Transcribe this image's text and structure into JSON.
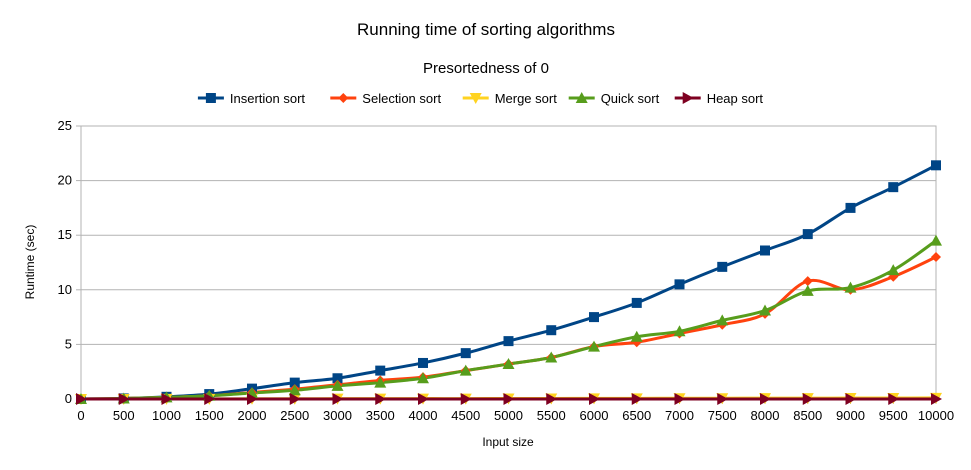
{
  "chart_data": {
    "type": "line",
    "title": "Running time of sorting algorithms",
    "subtitle": "Presortedness of 0",
    "xlabel": "Input size",
    "ylabel": "Runtime (sec)",
    "ylim": [
      0,
      25
    ],
    "yticks": [
      0,
      5,
      10,
      15,
      20,
      25
    ],
    "grid": true,
    "legend_position": "top",
    "x": [
      0,
      500,
      1000,
      1500,
      2000,
      2500,
      3000,
      3500,
      4000,
      4500,
      5000,
      5500,
      6000,
      6500,
      7000,
      7500,
      8000,
      8500,
      9000,
      9500,
      10000
    ],
    "series": [
      {
        "name": "Insertion sort",
        "color": "#004586",
        "marker": "square",
        "values": [
          0,
          0.05,
          0.2,
          0.45,
          0.95,
          1.5,
          1.9,
          2.6,
          3.3,
          4.2,
          5.3,
          6.3,
          7.5,
          8.8,
          10.5,
          12.1,
          13.6,
          15.1,
          17.5,
          19.4,
          21.4
        ]
      },
      {
        "name": "Selection sort",
        "color": "#ff420e",
        "marker": "diamond",
        "values": [
          0,
          0.05,
          0.15,
          0.3,
          0.6,
          0.9,
          1.3,
          1.7,
          2.0,
          2.6,
          3.2,
          3.8,
          4.8,
          5.2,
          6.0,
          6.8,
          7.8,
          10.8,
          10.0,
          11.2,
          13.0
        ]
      },
      {
        "name": "Merge sort",
        "color": "#ffd320",
        "marker": "triangle-down",
        "values": [
          0,
          0,
          0.01,
          0.01,
          0.02,
          0.02,
          0.03,
          0.03,
          0.04,
          0.04,
          0.05,
          0.05,
          0.06,
          0.06,
          0.07,
          0.07,
          0.08,
          0.08,
          0.09,
          0.09,
          0.1
        ]
      },
      {
        "name": "Quick sort",
        "color": "#579d1c",
        "marker": "triangle-up",
        "values": [
          0,
          0.05,
          0.15,
          0.3,
          0.55,
          0.8,
          1.2,
          1.5,
          1.9,
          2.6,
          3.2,
          3.8,
          4.8,
          5.7,
          6.2,
          7.2,
          8.1,
          9.9,
          10.2,
          11.8,
          14.5
        ]
      },
      {
        "name": "Heap sort",
        "color": "#7e0021",
        "marker": "triangle-right",
        "values": [
          0,
          0,
          0,
          0,
          0,
          0,
          0,
          0,
          0,
          0,
          0,
          0,
          0,
          0,
          0,
          0,
          0,
          0,
          0,
          0,
          0
        ]
      }
    ]
  }
}
